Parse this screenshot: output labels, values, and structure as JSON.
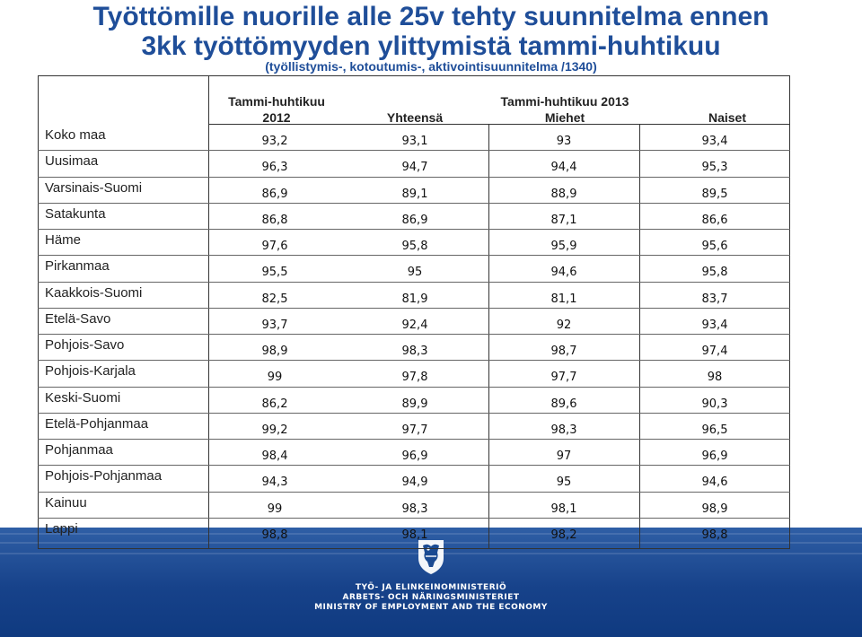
{
  "title_line1": "Työttömille nuorille alle 25v tehty suunnitelma ennen",
  "title_line2": "3kk työttömyyden ylittymistä tammi-huhtikuu",
  "subtitle": "(työllistymis-, kotoutumis-, aktivointisuunnitelma /1340)",
  "headers": {
    "col1_line1": "Tammi-huhtikuu",
    "col1_line2": "2012",
    "group_2013": "Tammi-huhtikuu 2013",
    "yhteensa": "Yhteensä",
    "miehet": "Miehet",
    "naiset": "Naiset"
  },
  "rows": [
    {
      "region": "Koko maa",
      "values": [
        "93,2",
        "93,1",
        "93",
        "93,4"
      ]
    },
    {
      "region": "Uusimaa",
      "values": [
        "96,3",
        "94,7",
        "94,4",
        "95,3"
      ]
    },
    {
      "region": "Varsinais-Suomi",
      "values": [
        "86,9",
        "89,1",
        "88,9",
        "89,5"
      ]
    },
    {
      "region": "Satakunta",
      "values": [
        "86,8",
        "86,9",
        "87,1",
        "86,6"
      ]
    },
    {
      "region": "Häme",
      "values": [
        "97,6",
        "95,8",
        "95,9",
        "95,6"
      ]
    },
    {
      "region": "Pirkanmaa",
      "values": [
        "95,5",
        "95",
        "94,6",
        "95,8"
      ]
    },
    {
      "region": "Kaakkois-Suomi",
      "values": [
        "82,5",
        "81,9",
        "81,1",
        "83,7"
      ]
    },
    {
      "region": "Etelä-Savo",
      "values": [
        "93,7",
        "92,4",
        "92",
        "93,4"
      ]
    },
    {
      "region": "Pohjois-Savo",
      "values": [
        "98,9",
        "98,3",
        "98,7",
        "97,4"
      ]
    },
    {
      "region": "Pohjois-Karjala",
      "values": [
        "99",
        "97,8",
        "97,7",
        "98"
      ]
    },
    {
      "region": "Keski-Suomi",
      "values": [
        "86,2",
        "89,9",
        "89,6",
        "90,3"
      ]
    },
    {
      "region": "Etelä-Pohjanmaa",
      "values": [
        "99,2",
        "97,7",
        "98,3",
        "96,5"
      ]
    },
    {
      "region": "Pohjanmaa",
      "values": [
        "98,4",
        "96,9",
        "97",
        "96,9"
      ]
    },
    {
      "region": "Pohjois-Pohjanmaa",
      "values": [
        "94,3",
        "94,9",
        "95",
        "94,6"
      ]
    },
    {
      "region": "Kainuu",
      "values": [
        "99",
        "98,3",
        "98,1",
        "98,9"
      ]
    },
    {
      "region": "Lappi",
      "values": [
        "98,8",
        "98,1",
        "98,2",
        "98,8"
      ]
    }
  ],
  "footer": {
    "line1": "TYÖ- JA ELINKEINOMINISTERIÖ",
    "line2": "ARBETS- OCH NÄRINGSMINISTERIET",
    "line3": "MINISTRY OF EMPLOYMENT AND THE ECONOMY",
    "logo_icon": "finnish-lion-crest-icon"
  },
  "colors": {
    "title": "#1f4e99",
    "footer_band": "#17428a"
  }
}
